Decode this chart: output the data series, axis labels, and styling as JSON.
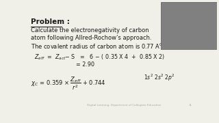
{
  "bg_color": "#f0f0e8",
  "text_color": "#1a1a1a",
  "title": "Problem :",
  "line1": "Calculate the electronegativity of carbon",
  "line2": "atom following Allred-Rochow’s approach.",
  "line3": "The covalent radius of carbon atom is 0.77 A",
  "footer": "Digital Learning, Department of Collegiate Education",
  "page_num": "11"
}
